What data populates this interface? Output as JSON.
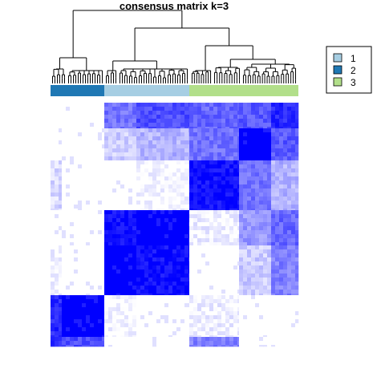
{
  "chart_data": {
    "type": "heatmap",
    "title": "consensus matrix k=3",
    "value_range": [
      0,
      1
    ],
    "color_scale": {
      "low": "#ffffff",
      "high": "#0000ff"
    },
    "cluster_colors": {
      "1": "#a6cee3",
      "2": "#1f78b4",
      "3": "#b2df8a"
    },
    "legend": {
      "position": "top-right",
      "entries": [
        {
          "label": "1",
          "color": "#a6cee3"
        },
        {
          "label": "2",
          "color": "#1f78b4"
        },
        {
          "label": "3",
          "color": "#b2df8a"
        }
      ]
    },
    "column_order_cluster_blocks": [
      {
        "cluster": "2",
        "samples": 11
      },
      {
        "cluster": "1",
        "samples": 18
      },
      {
        "cluster": "3",
        "samples": 23
      }
    ],
    "row_blocks": [
      "1a",
      "1b",
      "3a",
      "2a",
      "2b",
      "0a",
      "0b"
    ],
    "col_blocks": [
      "0a",
      "0b",
      "1a",
      "1b",
      "3a",
      "3b",
      "3c"
    ],
    "block_matrix": [
      [
        0.0,
        0.0,
        0.55,
        0.7,
        0.6,
        0.65,
        0.85
      ],
      [
        0.0,
        0.0,
        0.2,
        0.3,
        0.55,
        1.0,
        0.65
      ],
      [
        0.15,
        0.0,
        0.0,
        0.02,
        0.95,
        0.55,
        0.3
      ],
      [
        0.0,
        0.0,
        0.95,
        1.0,
        0.05,
        0.4,
        0.6
      ],
      [
        0.03,
        0.0,
        1.0,
        0.95,
        0.0,
        0.2,
        0.5
      ],
      [
        0.85,
        1.0,
        0.02,
        0.0,
        0.05,
        0.0,
        0.0
      ],
      [
        0.85,
        0.7,
        0.0,
        0.0,
        0.5,
        0.0,
        0.0
      ]
    ],
    "grid": false
  }
}
